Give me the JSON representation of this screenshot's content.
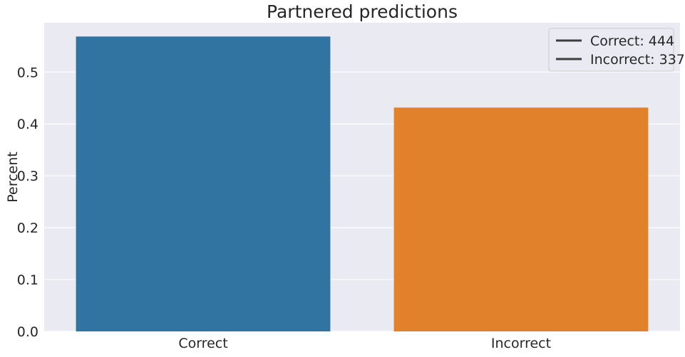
{
  "chart_data": {
    "type": "bar",
    "title": "Partnered predictions",
    "xlabel": "",
    "ylabel": "Percent",
    "categories": [
      "Correct",
      "Incorrect"
    ],
    "values": [
      0.5685,
      0.4315
    ],
    "colors": [
      "#3274a1",
      "#e1812c"
    ],
    "ylim": [
      0,
      0.595
    ],
    "yticks": [
      0.0,
      0.1,
      0.2,
      0.3,
      0.4,
      0.5
    ],
    "ytick_labels": [
      "0.0",
      "0.1",
      "0.2",
      "0.3",
      "0.4",
      "0.5"
    ],
    "grid": true,
    "background_color": "#eaeaf2",
    "legend": {
      "placement": "top-right",
      "line_color": "#3d3d3d",
      "entries": [
        "Correct: 444",
        "Incorrect: 337"
      ]
    }
  }
}
